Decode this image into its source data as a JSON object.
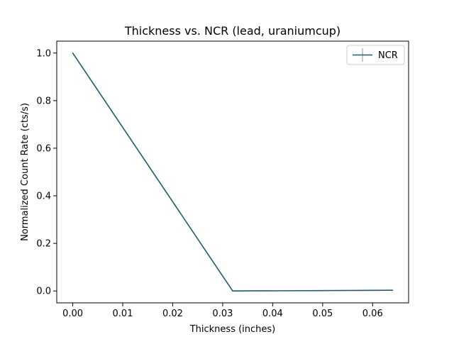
{
  "chart_data": {
    "type": "line",
    "title": "Thickness vs. NCR (lead, uraniumcup)",
    "xlabel": "Thickness (inches)",
    "ylabel": "Normalized Count Rate (cts/s)",
    "xlim": [
      -0.0032,
      0.0672
    ],
    "ylim": [
      -0.05,
      1.05
    ],
    "xticks": [
      0.0,
      0.01,
      0.02,
      0.03,
      0.04,
      0.05,
      0.06
    ],
    "xtick_labels": [
      "0.00",
      "0.01",
      "0.02",
      "0.03",
      "0.04",
      "0.05",
      "0.06"
    ],
    "yticks": [
      0.0,
      0.2,
      0.4,
      0.6,
      0.8,
      1.0
    ],
    "ytick_labels": [
      "0.0",
      "0.2",
      "0.4",
      "0.6",
      "0.8",
      "1.0"
    ],
    "grid": false,
    "legend_position": "top-right",
    "series": [
      {
        "name": "NCR",
        "color": "#1f5a6e",
        "x": [
          0.0,
          0.032,
          0.064
        ],
        "y": [
          1.0,
          0.0,
          0.003
        ]
      }
    ]
  }
}
